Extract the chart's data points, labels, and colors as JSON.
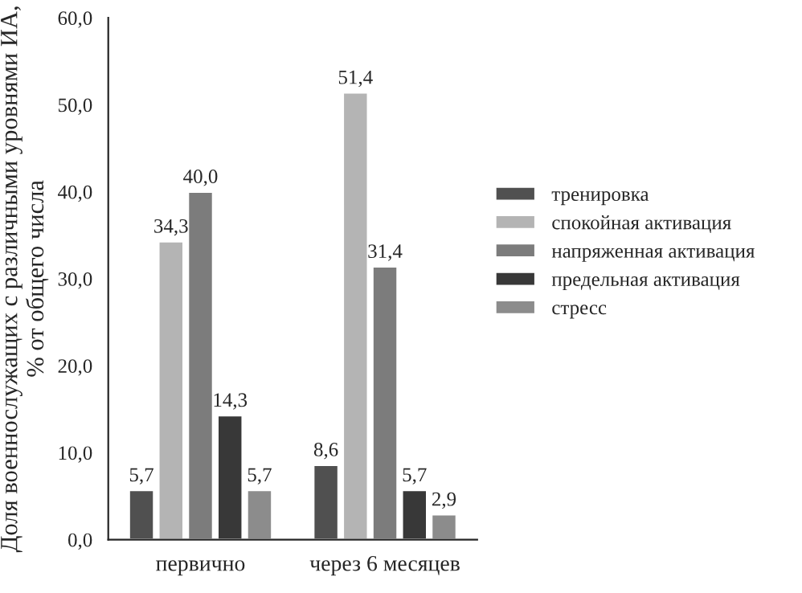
{
  "chart_data": {
    "type": "bar",
    "ylabel": "Доля военнослужащих с различными уровнями ИА, % от общего числа",
    "categories": [
      "первично",
      "через 6 месяцев"
    ],
    "series": [
      {
        "name": "тренировка",
        "color": "#505050",
        "values": [
          5.7,
          8.6
        ],
        "value_labels": [
          "5,7",
          "8,6"
        ]
      },
      {
        "name": "спокойная активация",
        "color": "#b4b4b4",
        "values": [
          34.3,
          51.4
        ],
        "value_labels": [
          "34,3",
          "51,4"
        ]
      },
      {
        "name": "напряженная активация",
        "color": "#7c7c7c",
        "values": [
          40.0,
          31.4
        ],
        "value_labels": [
          "40,0",
          "31,4"
        ]
      },
      {
        "name": "предельная активация",
        "color": "#383838",
        "values": [
          14.3,
          5.7
        ],
        "value_labels": [
          "14,3",
          "5,7"
        ]
      },
      {
        "name": "стресс",
        "color": "#8c8c8c",
        "values": [
          5.7,
          2.9
        ],
        "value_labels": [
          "5,7",
          "2,9"
        ]
      }
    ],
    "ylim": [
      0,
      60
    ],
    "yticks": [
      {
        "value": 0,
        "label": "0,0"
      },
      {
        "value": 10,
        "label": "10,0"
      },
      {
        "value": 20,
        "label": "20,0"
      },
      {
        "value": 30,
        "label": "30,0"
      },
      {
        "value": 40,
        "label": "40,0"
      },
      {
        "value": 50,
        "label": "50,0"
      },
      {
        "value": 60,
        "label": "60,0"
      }
    ],
    "grid": false,
    "legend": "right"
  }
}
